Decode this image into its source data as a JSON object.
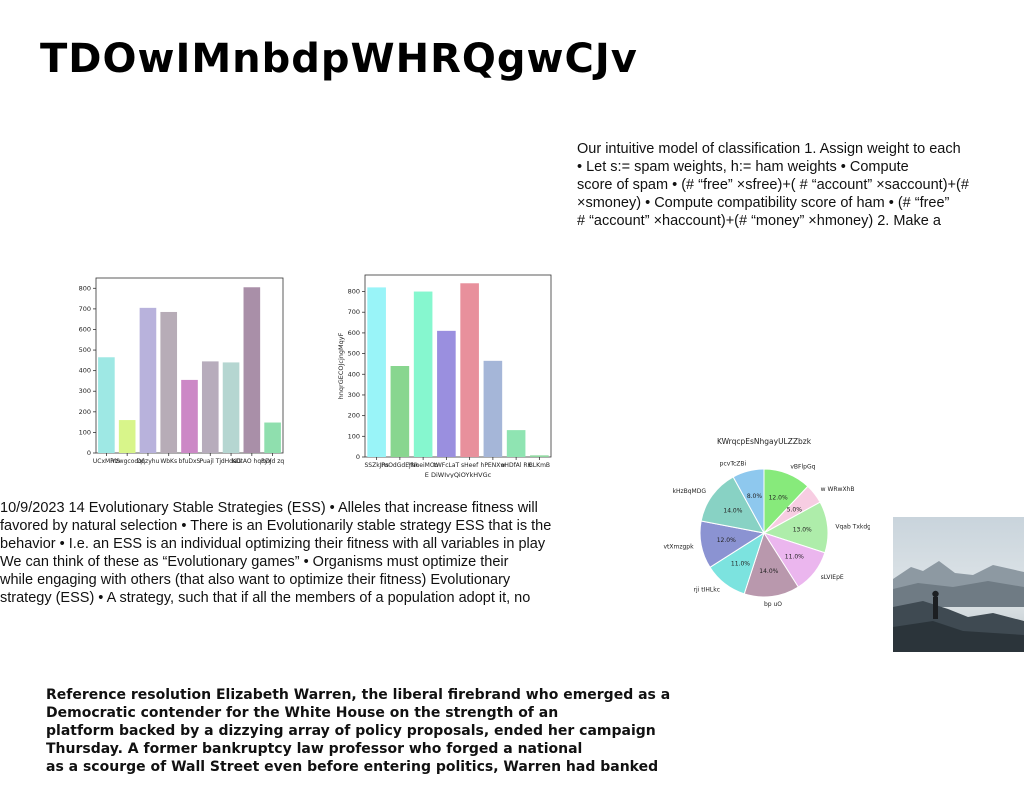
{
  "title": "TDOwIMnbdpWHRQgwCJv",
  "classification_text": {
    "lines": [
      "Our intuitive model of classification 1. Assign weight to each",
      "• Let s:= spam weights, h:= ham weights • Compute",
      "score of spam • (# “free” ×sfree)+( # “account” ×saccount)+(#",
      "×smoney) • Compute compatibility score of ham • (# “free”",
      "# “account” ×haccount)+(# “money” ×hmoney) 2. Make a"
    ]
  },
  "ess_text": {
    "lines": [
      "10/9/2023 14 Evolutionary Stable Strategies (ESS) • Alleles that increase fitness will",
      "favored by natural selection • There is an Evolutionarily stable strategy ESS that is the",
      "behavior • I.e. an ESS is an individual optimizing their fitness with all variables in play",
      "We can think of these as “Evolutionary games” • Organisms must optimize their",
      "while engaging with others (that also want to optimize their fitness) Evolutionary",
      "strategy (ESS) • A strategy, such that if all the members of a population adopt it, no"
    ]
  },
  "warren_text": {
    "lines": [
      "Reference resolution Elizabeth Warren, the liberal firebrand who emerged as a",
      "Democratic contender for the White House on the strength of an",
      "platform backed by a dizzying array of policy proposals, ended her campaign",
      "Thursday. A former bankruptcy law professor who forged a national",
      "as a scourge of Wall Street even before entering politics, Warren had banked"
    ]
  },
  "chart_data": [
    {
      "type": "bar",
      "title": "",
      "xlabel": "",
      "ylabel": "",
      "categories": [
        "UCxMRlS",
        "iYzwgcodqf",
        "Oqzyhu",
        "WbKs",
        "bfuDxS",
        "Puajl Tj",
        "dHdaG",
        "KDtAO hqcyY",
        "RDJd zq"
      ],
      "values": [
        465,
        160,
        705,
        685,
        355,
        445,
        440,
        805,
        148
      ],
      "colors": [
        "#9ee8e4",
        "#d8f58a",
        "#b8b2dc",
        "#b7acb7",
        "#cc88c6",
        "#b7acbc",
        "#b5d6d1",
        "#a98fa8",
        "#8fdfae"
      ],
      "ylim": [
        0,
        850
      ],
      "yticks": [
        0,
        100,
        200,
        300,
        400,
        500,
        600,
        700,
        800
      ]
    },
    {
      "type": "bar",
      "title": "",
      "xlabel": "E DiWIvyQiOYkHVGc",
      "ylabel": "hnqrGECOJcjngMqyF",
      "categories": [
        "SSZkJRs",
        "PoOdGdEjNk",
        "YhneiMOo",
        "tWFcLaT",
        "sHeef",
        "hPENXw",
        "oHDfAl RK",
        "BLKmB"
      ],
      "values": [
        820,
        440,
        800,
        610,
        840,
        465,
        130,
        8
      ],
      "colors": [
        "#99f4f8",
        "#88d68f",
        "#86f7cf",
        "#9a8fdf",
        "#e8909c",
        "#a5b6d8",
        "#8fe4b2",
        "#8fd8a0"
      ],
      "ylim": [
        0,
        880
      ],
      "yticks": [
        0,
        100,
        200,
        300,
        400,
        500,
        600,
        700,
        800
      ]
    },
    {
      "type": "pie",
      "title": "KWrqcpEsNhgayULZZbzk",
      "labels": [
        "vBFlpGq",
        "w WRwXhB",
        "Vqab Txkdg",
        "sLVIEpE",
        "bp uO",
        "rji tIHLkc",
        "vtXmzgpk",
        "kHzBqMDG",
        "pcvTcZBi"
      ],
      "values": [
        12.0,
        5.0,
        13.0,
        11.0,
        14.0,
        11.0,
        12.0,
        14.0,
        8.0
      ],
      "pct_labels": [
        "12.0%",
        "5.0%",
        "13.0%",
        "11.0%",
        "14.0%",
        "11.0%",
        "12.0%",
        "14.0%",
        "8.0%"
      ],
      "colors": [
        "#87ea7b",
        "#f7cde2",
        "#aeedaa",
        "#ebb6ee",
        "#b998ad",
        "#7ce3df",
        "#8b93d2",
        "#88d2c4",
        "#8ec8ee"
      ]
    }
  ]
}
